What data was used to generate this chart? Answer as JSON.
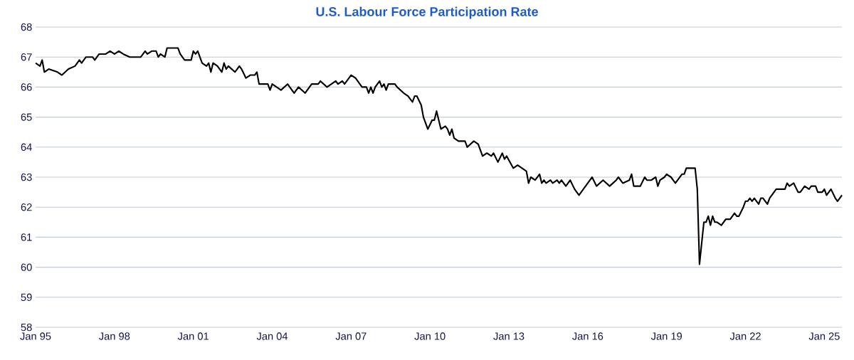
{
  "chart_data": {
    "type": "line",
    "title": "U.S. Labour Force Participation Rate",
    "x": [
      "1995-01",
      "1995-03",
      "1995-04",
      "1995-05",
      "1995-07",
      "1995-11",
      "1996-01",
      "1996-04",
      "1996-07",
      "1996-09",
      "1996-10",
      "1996-12",
      "1997-03",
      "1997-04",
      "1997-06",
      "1997-09",
      "1997-11",
      "1998-01",
      "1998-03",
      "1998-05",
      "1998-08",
      "1999-01",
      "1999-03",
      "1999-04",
      "1999-06",
      "1999-08",
      "1999-09",
      "1999-10",
      "1999-12",
      "2000-01",
      "2000-06",
      "2000-07",
      "2000-09",
      "2000-12",
      "2001-01",
      "2001-02",
      "2001-03",
      "2001-05",
      "2001-07",
      "2001-08",
      "2001-09",
      "2001-10",
      "2001-12",
      "2002-02",
      "2002-03",
      "2002-04",
      "2002-05",
      "2002-08",
      "2002-10",
      "2002-11",
      "2003-01",
      "2003-03",
      "2003-05",
      "2003-06",
      "2003-07",
      "2003-11",
      "2003-12",
      "2004-01",
      "2004-03",
      "2004-05",
      "2004-08",
      "2004-09",
      "2004-11",
      "2005-01",
      "2005-04",
      "2005-05",
      "2005-07",
      "2005-10",
      "2005-11",
      "2006-02",
      "2006-06",
      "2006-07",
      "2006-09",
      "2006-10",
      "2007-01",
      "2007-03",
      "2007-06",
      "2007-08",
      "2007-09",
      "2007-10",
      "2007-11",
      "2007-12",
      "2008-02",
      "2008-03",
      "2008-04",
      "2008-05",
      "2008-06",
      "2008-09",
      "2008-10",
      "2009-01",
      "2009-03",
      "2009-05",
      "2009-06",
      "2009-07",
      "2009-09",
      "2009-10",
      "2009-12",
      "2010-02",
      "2010-03",
      "2010-04",
      "2010-06",
      "2010-08",
      "2010-09",
      "2010-10",
      "2010-11",
      "2010-12",
      "2011-02",
      "2011-05",
      "2011-06",
      "2011-09",
      "2011-11",
      "2012-01",
      "2012-03",
      "2012-05",
      "2012-06",
      "2012-08",
      "2012-10",
      "2012-11",
      "2012-12",
      "2013-03",
      "2013-05",
      "2013-07",
      "2013-09",
      "2013-10",
      "2013-11",
      "2014-01",
      "2014-03",
      "2014-04",
      "2014-05",
      "2014-06",
      "2014-08",
      "2014-09",
      "2014-11",
      "2014-12",
      "2015-01",
      "2015-03",
      "2015-05",
      "2015-07",
      "2015-09",
      "2015-10",
      "2015-12",
      "2016-03",
      "2016-05",
      "2016-08",
      "2016-11",
      "2017-02",
      "2017-03",
      "2017-05",
      "2017-08",
      "2017-09",
      "2017-10",
      "2018-01",
      "2018-03",
      "2018-04",
      "2018-06",
      "2018-08",
      "2018-09",
      "2018-10",
      "2018-12",
      "2019-01",
      "2019-03",
      "2019-05",
      "2019-08",
      "2019-09",
      "2019-10",
      "2020-02",
      "2020-03",
      "2020-04",
      "2020-06",
      "2020-07",
      "2020-08",
      "2020-09",
      "2020-10",
      "2020-11",
      "2020-12",
      "2021-02",
      "2021-04",
      "2021-06",
      "2021-08",
      "2021-09",
      "2021-10",
      "2021-12",
      "2022-01",
      "2022-02",
      "2022-03",
      "2022-04",
      "2022-05",
      "2022-07",
      "2022-08",
      "2022-09",
      "2022-11",
      "2022-12",
      "2023-02",
      "2023-03",
      "2023-07",
      "2023-08",
      "2023-09",
      "2023-11",
      "2024-01",
      "2024-02",
      "2024-04",
      "2024-06",
      "2024-07",
      "2024-09",
      "2024-10",
      "2024-12",
      "2025-01",
      "2025-02",
      "2025-04",
      "2025-06",
      "2025-07",
      "2025-08",
      "2025-09"
    ],
    "series": [
      {
        "color": "#000000",
        "values": [
          66.8,
          66.7,
          66.9,
          66.5,
          66.6,
          66.5,
          66.4,
          66.6,
          66.7,
          66.9,
          66.8,
          67.0,
          67.0,
          66.9,
          67.1,
          67.1,
          67.2,
          67.1,
          67.2,
          67.1,
          67.0,
          67.0,
          67.2,
          67.1,
          67.2,
          67.2,
          67.0,
          67.1,
          67.0,
          67.3,
          67.3,
          67.1,
          66.9,
          66.9,
          67.2,
          67.1,
          67.2,
          66.8,
          66.7,
          66.8,
          66.5,
          66.8,
          66.7,
          66.5,
          66.8,
          66.6,
          66.7,
          66.5,
          66.7,
          66.6,
          66.3,
          66.4,
          66.4,
          66.5,
          66.1,
          66.1,
          65.9,
          66.1,
          66.0,
          65.9,
          66.1,
          66.0,
          65.8,
          66.0,
          65.8,
          65.9,
          66.1,
          66.1,
          66.2,
          66.0,
          66.2,
          66.1,
          66.2,
          66.1,
          66.4,
          66.3,
          66.0,
          66.0,
          65.8,
          66.0,
          65.8,
          66.0,
          66.2,
          66.0,
          66.1,
          65.9,
          66.1,
          66.1,
          66.0,
          65.8,
          65.7,
          65.5,
          65.7,
          65.7,
          65.4,
          65.0,
          64.6,
          64.9,
          64.9,
          65.2,
          64.6,
          64.7,
          64.6,
          64.4,
          64.6,
          64.3,
          64.2,
          64.2,
          64.0,
          64.2,
          64.1,
          63.7,
          63.8,
          63.7,
          63.8,
          63.5,
          63.8,
          63.6,
          63.7,
          63.3,
          63.4,
          63.3,
          63.2,
          62.8,
          63.0,
          62.9,
          63.1,
          62.8,
          62.9,
          62.8,
          62.9,
          62.8,
          62.9,
          62.8,
          62.9,
          62.7,
          62.9,
          62.6,
          62.4,
          62.5,
          62.7,
          63.0,
          62.7,
          62.9,
          62.7,
          62.9,
          63.0,
          62.8,
          62.9,
          63.1,
          62.7,
          62.7,
          63.0,
          62.9,
          62.9,
          63.0,
          62.7,
          62.9,
          63.0,
          63.1,
          63.0,
          62.8,
          63.1,
          63.1,
          63.3,
          63.3,
          62.6,
          60.1,
          61.5,
          61.5,
          61.7,
          61.4,
          61.7,
          61.5,
          61.5,
          61.4,
          61.6,
          61.6,
          61.8,
          61.7,
          61.7,
          62.0,
          62.2,
          62.2,
          62.3,
          62.2,
          62.3,
          62.1,
          62.3,
          62.3,
          62.1,
          62.3,
          62.5,
          62.6,
          62.6,
          62.8,
          62.7,
          62.8,
          62.5,
          62.5,
          62.7,
          62.6,
          62.7,
          62.7,
          62.5,
          62.5,
          62.6,
          62.4,
          62.6,
          62.3,
          62.2,
          62.3,
          62.4
        ]
      }
    ],
    "xlim": [
      "1995-01",
      "2025-09"
    ],
    "xticks": [
      {
        "value": "1995-01",
        "label": "Jan 95"
      },
      {
        "value": "1998-01",
        "label": "Jan 98"
      },
      {
        "value": "2001-01",
        "label": "Jan 01"
      },
      {
        "value": "2004-01",
        "label": "Jan 04"
      },
      {
        "value": "2007-01",
        "label": "Jan 07"
      },
      {
        "value": "2010-01",
        "label": "Jan 10"
      },
      {
        "value": "2013-01",
        "label": "Jan 13"
      },
      {
        "value": "2016-01",
        "label": "Jan 16"
      },
      {
        "value": "2019-01",
        "label": "Jan 19"
      },
      {
        "value": "2022-01",
        "label": "Jan 22"
      },
      {
        "value": "2025-01",
        "label": "Jan 25"
      }
    ],
    "ylim": [
      58,
      68
    ],
    "yticks": [
      58,
      59,
      60,
      61,
      62,
      63,
      64,
      65,
      66,
      67,
      68
    ],
    "grid": "y",
    "legend": false,
    "marker": "none",
    "line_style": "solid"
  }
}
